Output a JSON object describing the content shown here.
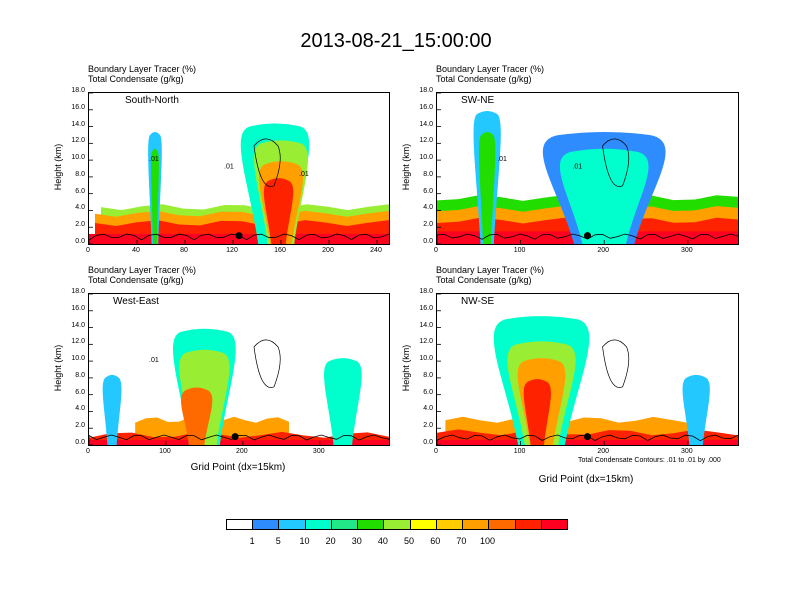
{
  "title": "2013-08-21_15:00:00",
  "header_line1": "Boundary Layer Tracer   (%)",
  "header_line2": "Total Condensate   (g/kg)",
  "ylabel": "Height (km)",
  "xlabel": "Grid Point (dx=15km)",
  "contour_note": "Total Condensate Contours: .01 to .01 by .000",
  "colors": [
    "#ffffff",
    "#2e8cff",
    "#22c8ff",
    "#00ffcc",
    "#22e888",
    "#22dd00",
    "#99ee33",
    "#ffff00",
    "#ffcc00",
    "#ffa000",
    "#ff6a00",
    "#ff2200",
    "#ff0020"
  ],
  "colorbar_labels": [
    "1",
    "5",
    "10",
    "20",
    "30",
    "40",
    "50",
    "60",
    "70",
    "100"
  ],
  "chart_data": [
    {
      "type": "heatmap",
      "panel_label": "South-North",
      "ylabel": "Height (km)",
      "ylim": [
        0,
        18
      ],
      "yticks": [
        "0.0",
        "2.0",
        "4.0",
        "6.0",
        "8.0",
        "10.0",
        "12.0",
        "14.0",
        "16.0",
        "18.0"
      ],
      "xlim": [
        0,
        250
      ],
      "xticks": [
        "0",
        "40",
        "80",
        "120",
        "160",
        "200",
        "240"
      ],
      "xlabel": "",
      "contour_labels": [
        ".01",
        ".01",
        ".01"
      ],
      "features": [
        {
          "kind": "base",
          "x0": 0,
          "x1": 250,
          "top": 1.2
        },
        {
          "kind": "layer",
          "x0": 5,
          "x1": 250,
          "top": 2.5,
          "level": 11
        },
        {
          "kind": "layer",
          "x0": 5,
          "x1": 250,
          "top": 3.6,
          "level": 9
        },
        {
          "kind": "layer",
          "x0": 10,
          "x1": 250,
          "top": 4.4,
          "level": 6
        },
        {
          "kind": "plume",
          "x": 155,
          "w": 70,
          "top": 14.0,
          "level": 3
        },
        {
          "kind": "plume",
          "x": 160,
          "w": 55,
          "top": 12.0,
          "level": 6
        },
        {
          "kind": "plume",
          "x": 160,
          "w": 45,
          "top": 9.5,
          "level": 9
        },
        {
          "kind": "plume",
          "x": 158,
          "w": 30,
          "top": 7.5,
          "level": 11
        },
        {
          "kind": "plume",
          "x": 55,
          "w": 14,
          "top": 13.0,
          "level": 2
        },
        {
          "kind": "plume",
          "x": 55,
          "w": 8,
          "top": 11.0,
          "level": 5
        }
      ],
      "marker": {
        "x": 125,
        "y": 1.0
      }
    },
    {
      "type": "heatmap",
      "panel_label": "SW-NE",
      "ylabel": "Height (km)",
      "ylim": [
        0,
        18
      ],
      "yticks": [
        "0.0",
        "2.0",
        "4.0",
        "6.0",
        "8.0",
        "10.0",
        "12.0",
        "14.0",
        "16.0",
        "18.0"
      ],
      "xlim": [
        0,
        360
      ],
      "xticks": [
        "0",
        "100",
        "200",
        "300"
      ],
      "xlabel": "",
      "contour_labels": [
        ".01",
        ".01"
      ],
      "features": [
        {
          "kind": "base",
          "x0": 0,
          "x1": 360,
          "top": 1.5
        },
        {
          "kind": "layer",
          "x0": 0,
          "x1": 360,
          "top": 2.8,
          "level": 11
        },
        {
          "kind": "layer",
          "x0": 0,
          "x1": 360,
          "top": 4.2,
          "level": 9
        },
        {
          "kind": "layer",
          "x0": 0,
          "x1": 360,
          "top": 5.5,
          "level": 5
        },
        {
          "kind": "plume",
          "x": 60,
          "w": 40,
          "top": 15.5,
          "level": 2
        },
        {
          "kind": "plume",
          "x": 60,
          "w": 24,
          "top": 13.0,
          "level": 5
        },
        {
          "kind": "plume",
          "x": 200,
          "w": 180,
          "top": 13.0,
          "level": 1
        },
        {
          "kind": "plume",
          "x": 200,
          "w": 130,
          "top": 11.0,
          "level": 3
        }
      ],
      "marker": {
        "x": 180,
        "y": 1.0
      }
    },
    {
      "type": "heatmap",
      "panel_label": "West-East",
      "ylabel": "Height (km)",
      "ylim": [
        0,
        18
      ],
      "yticks": [
        "0.0",
        "2.0",
        "4.0",
        "6.0",
        "8.0",
        "10.0",
        "12.0",
        "14.0",
        "16.0",
        "18.0"
      ],
      "xlim": [
        0,
        390
      ],
      "xticks": [
        "0",
        "100",
        "200",
        "300"
      ],
      "xlabel": "Grid Point (dx=15km)",
      "contour_labels": [
        ".01"
      ],
      "features": [
        {
          "kind": "base",
          "x0": 0,
          "x1": 390,
          "top": 0.6
        },
        {
          "kind": "layer",
          "x0": 0,
          "x1": 390,
          "top": 1.2,
          "level": 11
        },
        {
          "kind": "layer",
          "x0": 60,
          "x1": 260,
          "top": 3.0,
          "level": 9
        },
        {
          "kind": "plume",
          "x": 150,
          "w": 100,
          "top": 13.5,
          "level": 3
        },
        {
          "kind": "plume",
          "x": 150,
          "w": 80,
          "top": 11.0,
          "level": 6
        },
        {
          "kind": "plume",
          "x": 140,
          "w": 50,
          "top": 6.5,
          "level": 10
        },
        {
          "kind": "plume",
          "x": 30,
          "w": 30,
          "top": 8.0,
          "level": 2
        },
        {
          "kind": "plume",
          "x": 330,
          "w": 60,
          "top": 10.0,
          "level": 3
        }
      ],
      "marker": {
        "x": 190,
        "y": 1.0
      }
    },
    {
      "type": "heatmap",
      "panel_label": "NW-SE",
      "ylabel": "Height (km)",
      "ylim": [
        0,
        18
      ],
      "yticks": [
        "0.0",
        "2.0",
        "4.0",
        "6.0",
        "8.0",
        "10.0",
        "12.0",
        "14.0",
        "16.0",
        "18.0"
      ],
      "xlim": [
        0,
        360
      ],
      "xticks": [
        "0",
        "100",
        "200",
        "300"
      ],
      "xlabel": "Grid Point (dx=15km)",
      "contour_labels": [],
      "features": [
        {
          "kind": "base",
          "x0": 0,
          "x1": 360,
          "top": 0.6
        },
        {
          "kind": "layer",
          "x0": 0,
          "x1": 360,
          "top": 1.5,
          "level": 11
        },
        {
          "kind": "layer",
          "x0": 10,
          "x1": 300,
          "top": 3.0,
          "level": 9
        },
        {
          "kind": "plume",
          "x": 125,
          "w": 140,
          "top": 15.0,
          "level": 3
        },
        {
          "kind": "plume",
          "x": 125,
          "w": 100,
          "top": 12.0,
          "level": 6
        },
        {
          "kind": "plume",
          "x": 125,
          "w": 70,
          "top": 10.0,
          "level": 9
        },
        {
          "kind": "plume",
          "x": 120,
          "w": 40,
          "top": 7.5,
          "level": 11
        },
        {
          "kind": "plume",
          "x": 310,
          "w": 40,
          "top": 8.0,
          "level": 2
        }
      ],
      "marker": {
        "x": 180,
        "y": 1.0
      }
    }
  ]
}
